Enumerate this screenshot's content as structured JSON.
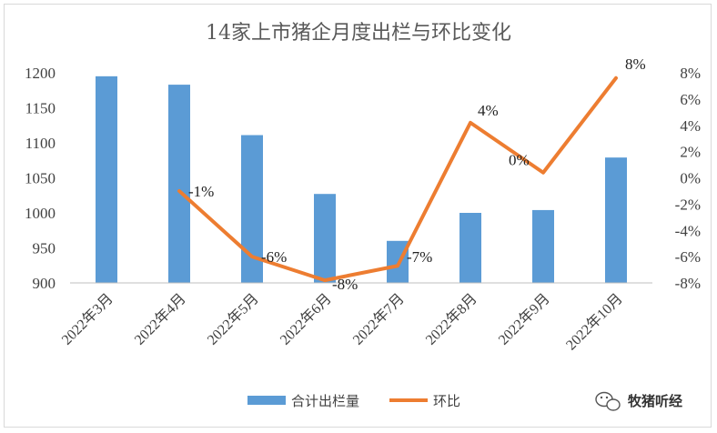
{
  "chart_data": {
    "type": "bar+line",
    "title": "14家上市猪企月度出栏与环比变化",
    "categories": [
      "2022年3月",
      "2022年4月",
      "2022年5月",
      "2022年6月",
      "2022年7月",
      "2022年8月",
      "2022年9月",
      "2022年10月"
    ],
    "series": [
      {
        "name": "合计出栏量",
        "type": "bar",
        "axis": "left",
        "color": "#5b9bd5",
        "values": [
          1195,
          1183,
          1111,
          1027,
          960,
          1000,
          1004,
          1079
        ]
      },
      {
        "name": "环比",
        "type": "line",
        "axis": "right",
        "color": "#ed7d31",
        "values": [
          null,
          -1.0,
          -6.0,
          -7.8,
          -6.7,
          4.2,
          0.4,
          7.6
        ],
        "labels": [
          "",
          "-1%",
          "-6%",
          "-8%",
          "-7%",
          "4%",
          "0%",
          "8%"
        ]
      }
    ],
    "y_left": {
      "min": 900,
      "max": 1200,
      "ticks": [
        "900",
        "950",
        "1000",
        "1050",
        "1100",
        "1150",
        "1200"
      ]
    },
    "y_right": {
      "min": -8,
      "max": 8,
      "ticks": [
        "-8%",
        "-6%",
        "-4%",
        "-2%",
        "0%",
        "2%",
        "4%",
        "6%",
        "8%"
      ]
    },
    "grid": false,
    "legend_position": "bottom"
  },
  "watermark": {
    "text": "牧猪听经",
    "icon": "wechat-icon"
  }
}
